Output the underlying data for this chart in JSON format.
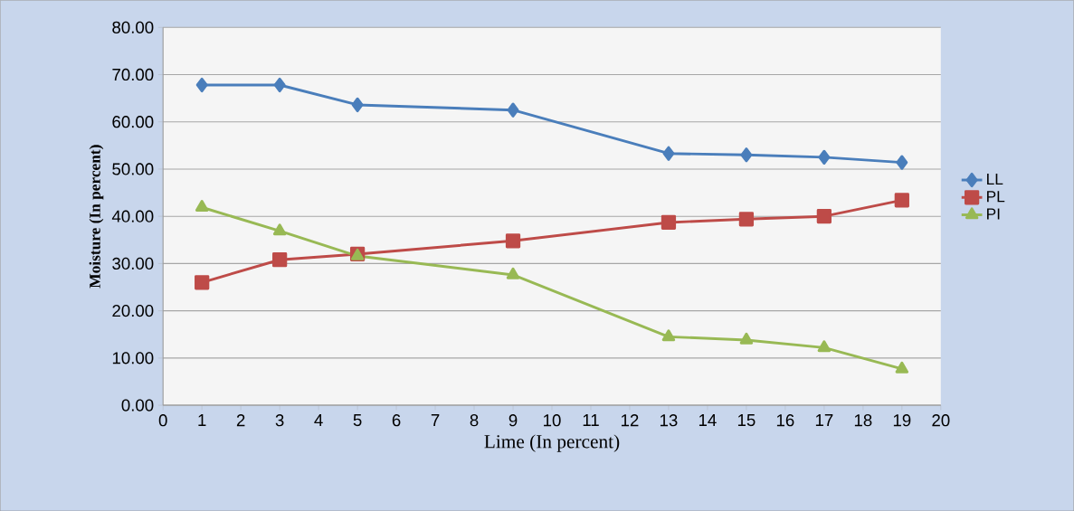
{
  "chart_data": {
    "type": "line",
    "xlabel": "Lime  (In percent)",
    "ylabel": "Moisture (In percent)",
    "x": [
      1,
      3,
      5,
      9,
      13,
      15,
      17,
      19
    ],
    "series": [
      {
        "name": "LL",
        "color": "#4a7ebb",
        "marker": "diamond",
        "values": [
          67.8,
          67.8,
          63.6,
          62.5,
          53.3,
          53.0,
          52.5,
          51.4
        ]
      },
      {
        "name": "PL",
        "color": "#be4b48",
        "marker": "square",
        "values": [
          26.0,
          30.8,
          32.0,
          34.8,
          38.7,
          39.4,
          40.0,
          43.4
        ]
      },
      {
        "name": "PI",
        "color": "#98b954",
        "marker": "triangle",
        "values": [
          41.9,
          36.9,
          31.6,
          27.6,
          14.5,
          13.8,
          12.2,
          7.7
        ]
      }
    ],
    "xlim": [
      0,
      20
    ],
    "xticks": [
      0,
      1,
      2,
      3,
      4,
      5,
      6,
      7,
      8,
      9,
      10,
      11,
      12,
      13,
      14,
      15,
      16,
      17,
      18,
      19,
      20
    ],
    "ylim": [
      0,
      80
    ],
    "yticks": [
      {
        "value": 0,
        "label": "0.00"
      },
      {
        "value": 10,
        "label": "10.00"
      },
      {
        "value": 20,
        "label": "20.00"
      },
      {
        "value": 30,
        "label": "30.00"
      },
      {
        "value": 40,
        "label": "40.00"
      },
      {
        "value": 50,
        "label": "50.00"
      },
      {
        "value": 60,
        "label": "60.00"
      },
      {
        "value": 70,
        "label": "70.00"
      },
      {
        "value": 80,
        "label": "80.00"
      }
    ],
    "grid": "y",
    "legend": "right",
    "line_style": "solid"
  }
}
